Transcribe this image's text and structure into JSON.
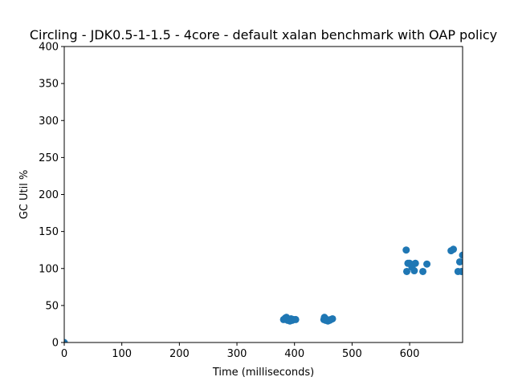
{
  "chart_data": {
    "type": "scatter",
    "title": "Circling - JDK0.5-1-1.5 - 4core -  default xalan benchmark with OAP policy",
    "xlabel": "Time (milliseconds)",
    "ylabel": "GC Util %",
    "xlim": [
      0,
      692
    ],
    "ylim": [
      0,
      400
    ],
    "xticks": [
      0,
      100,
      200,
      300,
      400,
      500,
      600
    ],
    "yticks": [
      0,
      50,
      100,
      150,
      200,
      250,
      300,
      350,
      400
    ],
    "grid": false,
    "marker_color": "#1f77b4",
    "series": [
      {
        "points": [
          [
            0,
            0
          ],
          [
            381,
            31
          ],
          [
            384,
            33
          ],
          [
            386,
            34
          ],
          [
            388,
            30
          ],
          [
            390,
            31
          ],
          [
            392,
            29
          ],
          [
            394,
            32
          ],
          [
            396,
            30
          ],
          [
            398,
            31
          ],
          [
            402,
            31
          ],
          [
            451,
            31
          ],
          [
            452,
            34
          ],
          [
            454,
            30
          ],
          [
            456,
            31
          ],
          [
            458,
            29
          ],
          [
            461,
            30
          ],
          [
            463,
            31
          ],
          [
            466,
            32
          ],
          [
            594,
            125
          ],
          [
            595,
            96
          ],
          [
            597,
            107
          ],
          [
            600,
            107
          ],
          [
            604,
            102
          ],
          [
            608,
            97
          ],
          [
            610,
            107
          ],
          [
            623,
            96
          ],
          [
            630,
            106
          ],
          [
            672,
            124
          ],
          [
            676,
            126
          ],
          [
            684,
            96
          ],
          [
            687,
            109
          ],
          [
            690,
            96
          ],
          [
            692,
            118
          ]
        ]
      }
    ]
  }
}
